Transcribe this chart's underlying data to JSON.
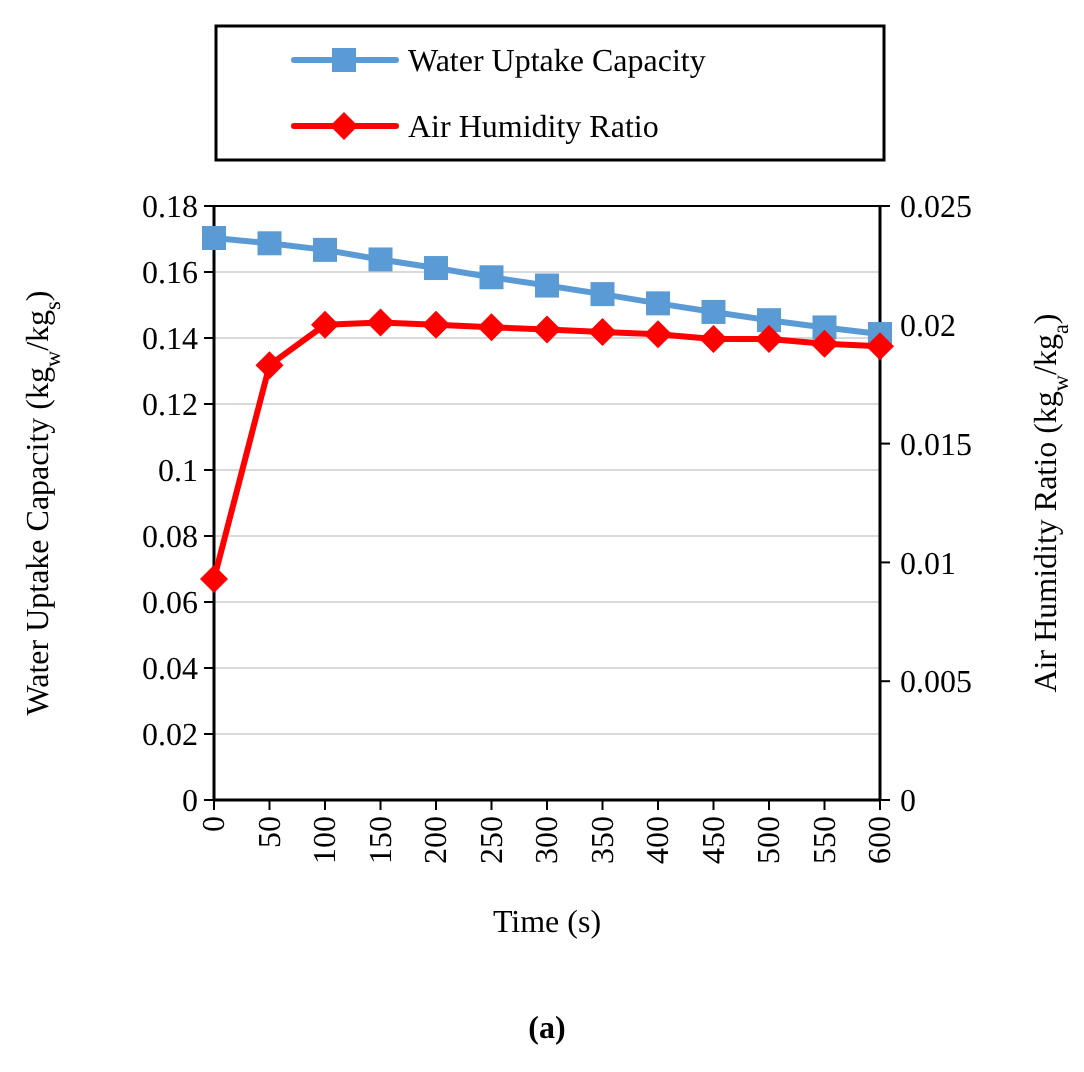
{
  "chart_data": {
    "type": "line",
    "xlabel": "Time (s)",
    "ylabel": "Water Uptake Capacity (kg$_{w}$/kg$_{s}$)",
    "y2label": "Air Humidity Ratio (kg$_{w}$/kg$_{a}$)",
    "categories": [
      "0",
      "50",
      "100",
      "150",
      "200",
      "250",
      "300",
      "350",
      "400",
      "450",
      "500",
      "550",
      "600"
    ],
    "series": [
      {
        "name": "Water Uptake Capacity",
        "color": "#5b9bd5",
        "marker": "square",
        "values": [
          0.1703,
          0.1687,
          0.1667,
          0.1638,
          0.1612,
          0.1584,
          0.1559,
          0.1533,
          0.1505,
          0.1479,
          0.1454,
          0.1432,
          0.1412
        ]
      },
      {
        "name": "Air Humidity Ratio",
        "color": "#ff0000",
        "marker": "diamond",
        "axis": "y2",
        "values": [
          0.0093,
          0.0183,
          0.02,
          0.0201,
          0.02,
          0.0199,
          0.0198,
          0.0197,
          0.0196,
          0.0194,
          0.0194,
          0.0192,
          0.0191
        ]
      }
    ],
    "ylim": [
      0,
      0.18
    ],
    "yticks": [
      0,
      0.02,
      0.04,
      0.06,
      0.08,
      {
        "value": 0.1,
        "label": "0.1"
      },
      0.12,
      0.14,
      0.16,
      0.18
    ],
    "y2lim": [
      0,
      0.025
    ],
    "y2ticks": [
      0,
      0.005,
      {
        "value": 0.01,
        "label": "0.01"
      },
      0.015,
      {
        "value": 0.02,
        "label": "0.02"
      },
      0.025
    ],
    "grid": "y",
    "legend": "top",
    "annotations": [
      "(a)"
    ]
  }
}
